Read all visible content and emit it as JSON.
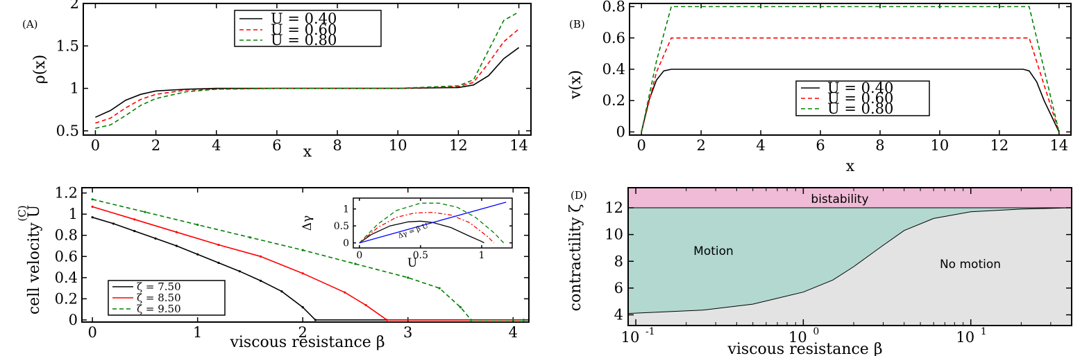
{
  "chart_data": [
    {
      "type": "line",
      "panel": "(A)",
      "xlabel": "x",
      "ylabel": "ρ(x)",
      "xlim": [
        -0.4,
        14.4
      ],
      "ylim": [
        0.45,
        2.0
      ],
      "xticks": [
        0,
        2,
        4,
        6,
        8,
        10,
        12,
        14
      ],
      "yticks": [
        0.5,
        1,
        1.5,
        2
      ],
      "ytick_labels": [
        "0.5",
        "1",
        "1.5",
        "2"
      ],
      "legend_position": "top-center",
      "series": [
        {
          "name": "U = 0.40",
          "color": "#000000",
          "dash": "solid",
          "x": [
            0,
            0.5,
            1,
            1.5,
            2,
            3,
            4,
            6,
            8,
            10,
            12,
            12.5,
            13,
            13.5,
            14
          ],
          "y": [
            0.66,
            0.74,
            0.86,
            0.93,
            0.97,
            0.99,
            1.0,
            1.0,
            1.0,
            1.0,
            1.01,
            1.04,
            1.15,
            1.35,
            1.48
          ]
        },
        {
          "name": "U = 0.60",
          "color": "#ff0000",
          "dash": "dashed",
          "x": [
            0,
            0.5,
            1,
            1.5,
            2,
            3,
            4,
            6,
            8,
            10,
            12,
            12.5,
            13,
            13.5,
            14
          ],
          "y": [
            0.59,
            0.65,
            0.77,
            0.87,
            0.93,
            0.98,
            0.99,
            1.0,
            1.0,
            1.0,
            1.02,
            1.07,
            1.3,
            1.55,
            1.7
          ]
        },
        {
          "name": "U = 0.80",
          "color": "#008000",
          "dash": "dashed",
          "x": [
            0,
            0.5,
            1,
            1.5,
            2,
            3,
            4,
            6,
            8,
            10,
            12,
            12.5,
            13,
            13.5,
            14
          ],
          "y": [
            0.53,
            0.57,
            0.68,
            0.8,
            0.88,
            0.96,
            0.99,
            1.0,
            1.0,
            1.0,
            1.03,
            1.1,
            1.45,
            1.8,
            1.9
          ]
        }
      ]
    },
    {
      "type": "line",
      "panel": "(B)",
      "xlabel": "x",
      "ylabel": "v(x)",
      "xlim": [
        -0.4,
        14.4
      ],
      "ylim": [
        -0.02,
        0.82
      ],
      "xticks": [
        0,
        2,
        4,
        6,
        8,
        10,
        12,
        14
      ],
      "yticks": [
        0,
        0.2,
        0.4,
        0.6,
        0.8
      ],
      "ytick_labels": [
        "0",
        "0.2",
        "0.4",
        "0.6",
        "0.8"
      ],
      "legend_position": "bottom-center",
      "series": [
        {
          "name": "U = 0.40",
          "color": "#000000",
          "dash": "solid",
          "x": [
            0,
            0.25,
            0.5,
            0.75,
            1,
            1.2,
            12.8,
            13,
            13.25,
            13.5,
            13.75,
            14
          ],
          "y": [
            0,
            0.2,
            0.33,
            0.39,
            0.4,
            0.4,
            0.4,
            0.39,
            0.32,
            0.2,
            0.1,
            0
          ]
        },
        {
          "name": "U = 0.60",
          "color": "#ff0000",
          "dash": "dashed",
          "x": [
            0,
            0.5,
            1,
            13,
            14
          ],
          "y": [
            0,
            0.38,
            0.6,
            0.6,
            0
          ]
        },
        {
          "name": "U = 0.80",
          "color": "#008000",
          "dash": "dashed",
          "x": [
            0,
            0.5,
            1,
            13,
            14
          ],
          "y": [
            0,
            0.45,
            0.8,
            0.8,
            0
          ]
        }
      ]
    },
    {
      "type": "line",
      "panel": "(C)",
      "xlabel": "viscous resistance β",
      "ylabel": "cell velocity U",
      "xlim": [
        -0.1,
        4.15
      ],
      "ylim": [
        -0.02,
        1.25
      ],
      "xticks": [
        0,
        1,
        2,
        3,
        4
      ],
      "yticks": [
        0,
        0.2,
        0.4,
        0.6,
        0.8,
        1,
        1.2
      ],
      "ytick_labels": [
        "0",
        "0.2",
        "0.4",
        "0.6",
        "0.8",
        "1",
        "1.2"
      ],
      "legend_position": "bottom-left",
      "series": [
        {
          "name": "ζ = 7.50",
          "color": "#000000",
          "dash": "solid",
          "x": [
            0,
            0.2,
            0.4,
            0.6,
            0.8,
            1.0,
            1.2,
            1.4,
            1.6,
            1.8,
            2.0,
            2.12,
            4.1
          ],
          "y": [
            0.97,
            0.91,
            0.84,
            0.77,
            0.7,
            0.62,
            0.54,
            0.46,
            0.37,
            0.27,
            0.12,
            0,
            0
          ]
        },
        {
          "name": "ζ = 8.50",
          "color": "#ff0000",
          "dash": "solid",
          "x": [
            0,
            0.4,
            0.8,
            1.2,
            1.6,
            2.0,
            2.4,
            2.6,
            2.8,
            4.1
          ],
          "y": [
            1.07,
            0.95,
            0.83,
            0.71,
            0.6,
            0.44,
            0.26,
            0.14,
            0,
            0
          ]
        },
        {
          "name": "ζ = 9.50",
          "color": "#008000",
          "dash": "dashed",
          "x": [
            0,
            0.5,
            1.0,
            1.5,
            2.0,
            2.5,
            3.0,
            3.3,
            3.5,
            3.6,
            4.1
          ],
          "y": [
            1.14,
            1.02,
            0.9,
            0.78,
            0.66,
            0.53,
            0.4,
            0.3,
            0.12,
            0,
            0
          ]
        }
      ],
      "inset": {
        "xlabel": "U",
        "ylabel": "Δγ",
        "xlim": [
          -0.05,
          1.25
        ],
        "ylim": [
          -0.15,
          1.32
        ],
        "xticks": [
          0,
          0.5,
          1
        ],
        "xtick_labels": [
          "0",
          "0.5",
          "1"
        ],
        "yticks": [
          0,
          0.5,
          1
        ],
        "ytick_labels": [
          "0",
          "0.5",
          "1"
        ],
        "annotation": "Δγ = β U",
        "series": [
          {
            "name": "ζ = 7.50",
            "color": "#000000",
            "dash": "solid",
            "x": [
              0,
              0.1,
              0.25,
              0.4,
              0.5,
              0.6,
              0.75,
              0.9,
              1.0,
              1.02
            ],
            "y": [
              0,
              0.25,
              0.5,
              0.62,
              0.64,
              0.6,
              0.45,
              0.2,
              0.04,
              0
            ]
          },
          {
            "name": "ζ = 8.50",
            "color": "#ff0000",
            "dash": "dashdot",
            "x": [
              0,
              0.15,
              0.3,
              0.45,
              0.6,
              0.75,
              0.9,
              1.05,
              1.1
            ],
            "y": [
              0,
              0.45,
              0.75,
              0.88,
              0.9,
              0.82,
              0.6,
              0.18,
              0
            ]
          },
          {
            "name": "ζ = 9.50",
            "color": "#008000",
            "dash": "dashed",
            "x": [
              0,
              0.15,
              0.3,
              0.5,
              0.65,
              0.8,
              0.95,
              1.1,
              1.18
            ],
            "y": [
              0,
              0.55,
              0.95,
              1.17,
              1.17,
              1.05,
              0.75,
              0.3,
              0
            ]
          },
          {
            "name": "Δγ = β U",
            "color": "#0000ff",
            "dash": "solid",
            "x": [
              0,
              1.2
            ],
            "y": [
              0,
              1.2
            ]
          }
        ]
      }
    },
    {
      "type": "area",
      "panel": "(D)",
      "xlabel": "viscous resistance β",
      "ylabel": "contractility ζ",
      "xscale": "log",
      "xlim": [
        0.09,
        40
      ],
      "ylim": [
        3.2,
        13.5
      ],
      "xticks": [
        0.1,
        1,
        10
      ],
      "xtick_labels": [
        "10",
        "10",
        "10"
      ],
      "xtick_exponents": [
        "-1",
        "0",
        "1"
      ],
      "yticks": [
        4,
        6,
        8,
        10,
        12
      ],
      "ytick_labels": [
        "4",
        "6",
        "8",
        "10",
        "12"
      ],
      "regions": [
        {
          "name": "bistability",
          "color": "#efbbd6"
        },
        {
          "name": "Motion",
          "color": "#b2d8d0"
        },
        {
          "name": "No motion",
          "color": "#e3e3e3"
        }
      ],
      "bistability_threshold": 12,
      "boundary": {
        "x": [
          0.09,
          0.25,
          0.5,
          1,
          1.5,
          2,
          3,
          4,
          6,
          10,
          20,
          40
        ],
        "y": [
          4.1,
          4.35,
          4.8,
          5.7,
          6.6,
          7.6,
          9.2,
          10.3,
          11.2,
          11.7,
          11.9,
          12.0
        ]
      }
    }
  ]
}
